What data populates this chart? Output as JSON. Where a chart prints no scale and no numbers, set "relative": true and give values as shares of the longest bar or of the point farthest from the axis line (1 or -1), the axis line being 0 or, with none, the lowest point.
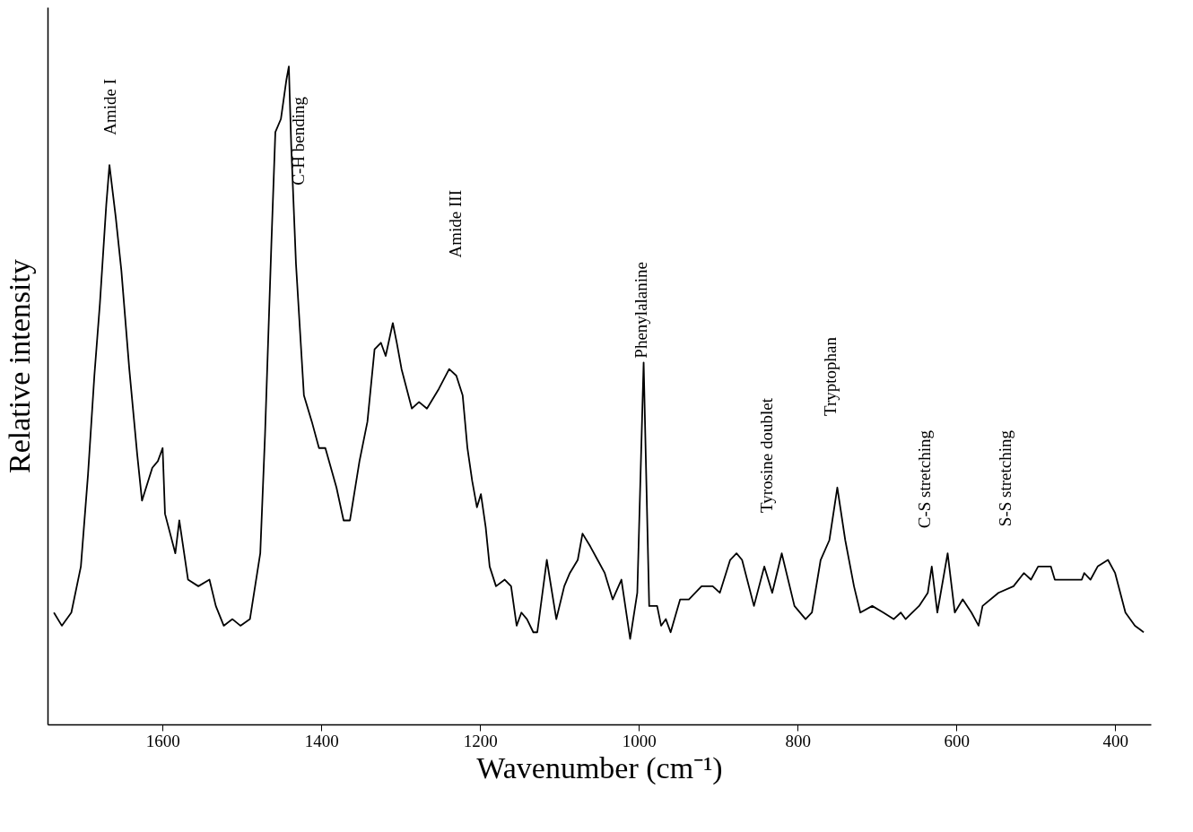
{
  "chart_data": {
    "type": "line",
    "relative": true,
    "xlabel": "Wavenumber (cm⁻¹)",
    "ylabel": "Relative intensity",
    "xlim": [
      1745,
      355
    ],
    "xticks": [
      1600,
      1400,
      1200,
      1000,
      800,
      600,
      400
    ],
    "tick_labels": "x",
    "grid": false,
    "marker": "none",
    "line_style": "solid",
    "series": [
      {
        "color": "#000000",
        "x": [
          1737,
          1727,
          1715,
          1703,
          1694,
          1686,
          1679,
          1671,
          1667,
          1659,
          1652,
          1642,
          1632,
          1626,
          1613,
          1606,
          1600,
          1597,
          1584,
          1579,
          1568,
          1555,
          1541,
          1533,
          1523,
          1512,
          1502,
          1490,
          1477,
          1471,
          1463,
          1458,
          1451,
          1444,
          1441,
          1438,
          1432,
          1422,
          1412,
          1403,
          1395,
          1381,
          1372,
          1364,
          1352,
          1342,
          1333,
          1325,
          1319,
          1310,
          1305,
          1299,
          1286,
          1277,
          1267,
          1252,
          1239,
          1230,
          1222,
          1216,
          1210,
          1204,
          1199,
          1193,
          1188,
          1180,
          1169,
          1161,
          1154,
          1148,
          1141,
          1133,
          1128,
          1116,
          1104,
          1094,
          1087,
          1077,
          1071,
          1061,
          1052,
          1043,
          1033,
          1022,
          1011,
          1002,
          994,
          987,
          977,
          972,
          966,
          960,
          948,
          937,
          921,
          907,
          898,
          885,
          877,
          870,
          855,
          842,
          832,
          820,
          804,
          790,
          782,
          771,
          760,
          750,
          740,
          729,
          721,
          706,
          692,
          679,
          670,
          664,
          647,
          636,
          631,
          624,
          611,
          602,
          592,
          581,
          572,
          567,
          547,
          528,
          515,
          506,
          497,
          481,
          476,
          465,
          458,
          442,
          439,
          431,
          422,
          409,
          400,
          387,
          375,
          364
        ],
        "values": [
          0.17,
          0.15,
          0.17,
          0.24,
          0.38,
          0.53,
          0.64,
          0.79,
          0.85,
          0.77,
          0.69,
          0.54,
          0.41,
          0.34,
          0.39,
          0.4,
          0.42,
          0.32,
          0.26,
          0.31,
          0.22,
          0.21,
          0.22,
          0.18,
          0.15,
          0.16,
          0.15,
          0.16,
          0.26,
          0.44,
          0.73,
          0.9,
          0.92,
          0.98,
          1.0,
          0.88,
          0.7,
          0.5,
          0.46,
          0.42,
          0.42,
          0.36,
          0.31,
          0.31,
          0.4,
          0.46,
          0.57,
          0.58,
          0.56,
          0.61,
          0.58,
          0.54,
          0.48,
          0.49,
          0.48,
          0.51,
          0.54,
          0.53,
          0.5,
          0.42,
          0.37,
          0.33,
          0.35,
          0.3,
          0.24,
          0.21,
          0.22,
          0.21,
          0.15,
          0.17,
          0.16,
          0.14,
          0.14,
          0.25,
          0.16,
          0.21,
          0.23,
          0.25,
          0.29,
          0.27,
          0.25,
          0.23,
          0.19,
          0.22,
          0.13,
          0.2,
          0.55,
          0.18,
          0.18,
          0.15,
          0.16,
          0.14,
          0.19,
          0.19,
          0.21,
          0.21,
          0.2,
          0.25,
          0.26,
          0.25,
          0.18,
          0.24,
          0.2,
          0.26,
          0.18,
          0.16,
          0.17,
          0.25,
          0.28,
          0.36,
          0.28,
          0.21,
          0.17,
          0.18,
          0.17,
          0.16,
          0.17,
          0.16,
          0.18,
          0.2,
          0.24,
          0.17,
          0.26,
          0.17,
          0.19,
          0.17,
          0.15,
          0.18,
          0.2,
          0.21,
          0.23,
          0.22,
          0.24,
          0.24,
          0.22,
          0.22,
          0.22,
          0.22,
          0.23,
          0.22,
          0.24,
          0.25,
          0.23,
          0.17,
          0.15,
          0.14
        ]
      }
    ],
    "annotations": [
      "Amide I",
      "C-H bending",
      "Amide III",
      "Phenylalanine",
      "Tyrosine doublet",
      "Tryptophan",
      "C-S stretching",
      "S-S stretching"
    ]
  }
}
